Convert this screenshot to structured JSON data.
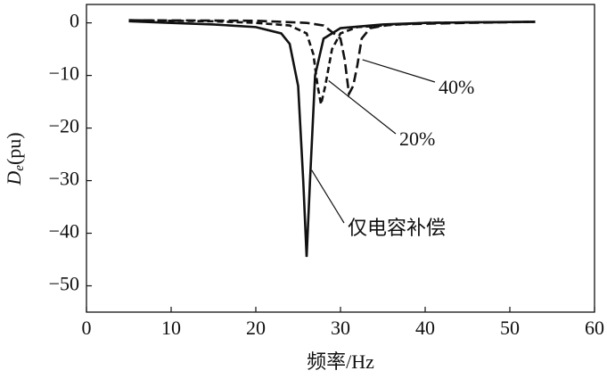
{
  "chart_data": {
    "type": "line",
    "x_label": "频率/Hz",
    "y_label": {
      "main": "D",
      "sub": "e",
      "unit": "(pu)"
    },
    "xlim": [
      0,
      60
    ],
    "xticks": [
      0,
      10,
      20,
      30,
      40,
      50,
      60
    ],
    "ylim": [
      -55,
      3.5
    ],
    "yticks": [
      {
        "value": -50,
        "label": "−50"
      },
      {
        "value": -40,
        "label": "−40"
      },
      {
        "value": -30,
        "label": "−30"
      },
      {
        "value": -20,
        "label": "−20"
      },
      {
        "value": -10,
        "label": "−10"
      },
      0
    ],
    "series": [
      {
        "name": "仅电容补偿",
        "color": "#111111",
        "dash": "none",
        "x": [
          5,
          10,
          15,
          20,
          23,
          24,
          25,
          25.6,
          26,
          26.4,
          27,
          28,
          30,
          35,
          40,
          45,
          53
        ],
        "values": [
          0.3,
          0,
          -0.3,
          -0.8,
          -2,
          -4,
          -12,
          -30,
          -44.5,
          -30,
          -10,
          -3,
          -1,
          -0.3,
          0,
          0.1,
          0.2
        ]
      },
      {
        "name": "20%",
        "color": "#111111",
        "dash": "7,4",
        "x": [
          5,
          15,
          20,
          24,
          26,
          26.8,
          27.3,
          27.7,
          28.2,
          29,
          30,
          32,
          40,
          53
        ],
        "values": [
          0.5,
          0.3,
          0,
          -0.5,
          -2,
          -6,
          -12,
          -15.5,
          -12,
          -5,
          -2,
          -0.8,
          0,
          0.2
        ]
      },
      {
        "name": "40%",
        "color": "#111111",
        "dash": "11,5",
        "x": [
          5,
          20,
          26,
          28,
          30,
          30.5,
          31,
          31.5,
          32,
          32.5,
          33.5,
          36,
          45,
          53
        ],
        "values": [
          0.5,
          0.4,
          0,
          -0.5,
          -3,
          -7,
          -13.5,
          -12,
          -8,
          -3,
          -1,
          -0.3,
          0,
          0.2
        ]
      }
    ]
  }
}
